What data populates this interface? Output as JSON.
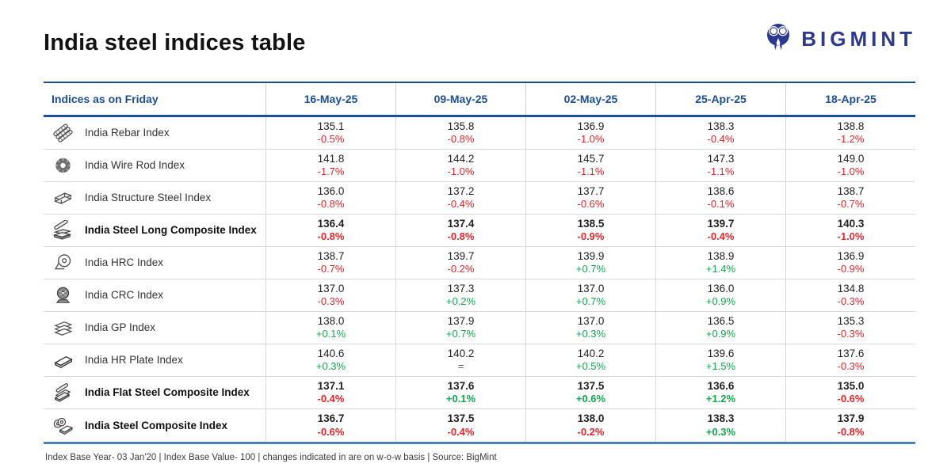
{
  "title": "India steel indices table",
  "logo": {
    "text": "BIGMINT"
  },
  "footer": "Index Base Year- 03 Jan'20 | Index Base Value- 100 | changes indicated in are on w-o-w basis | Source: BigMint",
  "colors": {
    "header_blue": "#1b4e9b",
    "logo_navy": "#2b3990",
    "down_red": "#e8262b",
    "up_green": "#17a650",
    "neutral_gray": "#555555",
    "bottom_border_blue": "#4d7ebf"
  },
  "chart_data": {
    "type": "table",
    "title": "India steel indices table",
    "corner_label": "Indices as on Friday",
    "columns": [
      "16-May-25",
      "09-May-25",
      "02-May-25",
      "25-Apr-25",
      "18-Apr-25"
    ],
    "rows": [
      {
        "name": "India Rebar Index",
        "icon": "rebar-icon",
        "bold": false,
        "cells": [
          {
            "value": "135.1",
            "change": "-0.5%",
            "dir": "down"
          },
          {
            "value": "135.8",
            "change": "-0.8%",
            "dir": "down"
          },
          {
            "value": "136.9",
            "change": "-1.0%",
            "dir": "down"
          },
          {
            "value": "138.3",
            "change": "-0.4%",
            "dir": "down"
          },
          {
            "value": "138.8",
            "change": "-1.2%",
            "dir": "down"
          }
        ]
      },
      {
        "name": "India Wire Rod Index",
        "icon": "wire-rod-icon",
        "bold": false,
        "cells": [
          {
            "value": "141.8",
            "change": "-1.7%",
            "dir": "down"
          },
          {
            "value": "144.2",
            "change": "-1.0%",
            "dir": "down"
          },
          {
            "value": "145.7",
            "change": "-1.1%",
            "dir": "down"
          },
          {
            "value": "147.3",
            "change": "-1.1%",
            "dir": "down"
          },
          {
            "value": "149.0",
            "change": "-1.0%",
            "dir": "down"
          }
        ]
      },
      {
        "name": "India Structure Steel Index",
        "icon": "structure-steel-icon",
        "bold": false,
        "cells": [
          {
            "value": "136.0",
            "change": "-0.8%",
            "dir": "down"
          },
          {
            "value": "137.2",
            "change": "-0.4%",
            "dir": "down"
          },
          {
            "value": "137.7",
            "change": "-0.6%",
            "dir": "down"
          },
          {
            "value": "138.6",
            "change": "-0.1%",
            "dir": "down"
          },
          {
            "value": "138.7",
            "change": "-0.7%",
            "dir": "down"
          }
        ]
      },
      {
        "name": "India Steel Long Composite Index",
        "icon": "long-composite-icon",
        "bold": true,
        "cells": [
          {
            "value": "136.4",
            "change": "-0.8%",
            "dir": "down"
          },
          {
            "value": "137.4",
            "change": "-0.8%",
            "dir": "down"
          },
          {
            "value": "138.5",
            "change": "-0.9%",
            "dir": "down"
          },
          {
            "value": "139.7",
            "change": "-0.4%",
            "dir": "down"
          },
          {
            "value": "140.3",
            "change": "-1.0%",
            "dir": "down"
          }
        ]
      },
      {
        "name": "India HRC Index",
        "icon": "hrc-coil-icon",
        "bold": false,
        "cells": [
          {
            "value": "138.7",
            "change": "-0.7%",
            "dir": "down"
          },
          {
            "value": "139.7",
            "change": "-0.2%",
            "dir": "down"
          },
          {
            "value": "139.9",
            "change": "+0.7%",
            "dir": "up"
          },
          {
            "value": "138.9",
            "change": "+1.4%",
            "dir": "up"
          },
          {
            "value": "136.9",
            "change": "-0.9%",
            "dir": "down"
          }
        ]
      },
      {
        "name": "India CRC Index",
        "icon": "crc-coil-icon",
        "bold": false,
        "cells": [
          {
            "value": "137.0",
            "change": "-0.3%",
            "dir": "down"
          },
          {
            "value": "137.3",
            "change": "+0.2%",
            "dir": "up"
          },
          {
            "value": "137.0",
            "change": "+0.7%",
            "dir": "up"
          },
          {
            "value": "136.0",
            "change": "+0.9%",
            "dir": "up"
          },
          {
            "value": "134.8",
            "change": "-0.3%",
            "dir": "down"
          }
        ]
      },
      {
        "name": "India GP Index",
        "icon": "gp-sheets-icon",
        "bold": false,
        "cells": [
          {
            "value": "138.0",
            "change": "+0.1%",
            "dir": "up"
          },
          {
            "value": "137.9",
            "change": "+0.7%",
            "dir": "up"
          },
          {
            "value": "137.0",
            "change": "+0.3%",
            "dir": "up"
          },
          {
            "value": "136.5",
            "change": "+0.9%",
            "dir": "up"
          },
          {
            "value": "135.3",
            "change": "-0.3%",
            "dir": "down"
          }
        ]
      },
      {
        "name": "India HR Plate Index",
        "icon": "hr-plate-icon",
        "bold": false,
        "cells": [
          {
            "value": "140.6",
            "change": "+0.3%",
            "dir": "up"
          },
          {
            "value": "140.2",
            "change": "=",
            "dir": "flat"
          },
          {
            "value": "140.2",
            "change": "+0.5%",
            "dir": "up"
          },
          {
            "value": "139.6",
            "change": "+1.5%",
            "dir": "up"
          },
          {
            "value": "137.6",
            "change": "-0.3%",
            "dir": "down"
          }
        ]
      },
      {
        "name": "India Flat Steel Composite Index",
        "icon": "flat-composite-icon",
        "bold": true,
        "cells": [
          {
            "value": "137.1",
            "change": "-0.4%",
            "dir": "down"
          },
          {
            "value": "137.6",
            "change": "+0.1%",
            "dir": "up"
          },
          {
            "value": "137.5",
            "change": "+0.6%",
            "dir": "up"
          },
          {
            "value": "136.6",
            "change": "+1.2%",
            "dir": "up"
          },
          {
            "value": "135.0",
            "change": "-0.6%",
            "dir": "down"
          }
        ]
      },
      {
        "name": "India Steel Composite Index",
        "icon": "steel-composite-icon",
        "bold": true,
        "cells": [
          {
            "value": "136.7",
            "change": "-0.6%",
            "dir": "down"
          },
          {
            "value": "137.5",
            "change": "-0.4%",
            "dir": "down"
          },
          {
            "value": "138.0",
            "change": "-0.2%",
            "dir": "down"
          },
          {
            "value": "138.3",
            "change": "+0.3%",
            "dir": "up"
          },
          {
            "value": "137.9",
            "change": "-0.8%",
            "dir": "down"
          }
        ]
      }
    ]
  }
}
